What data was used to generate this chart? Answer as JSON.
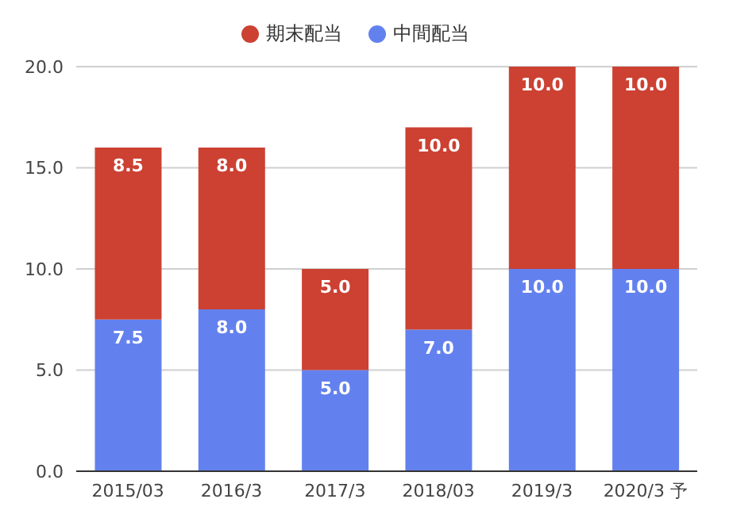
{
  "chart_data": {
    "type": "bar",
    "stacked": true,
    "categories": [
      "2015/03",
      "2016/3",
      "2017/3",
      "2018/03",
      "2019/3",
      "2020/3 予"
    ],
    "series": [
      {
        "name": "中間配当",
        "color": "#6381ee",
        "values": [
          7.5,
          8.0,
          5.0,
          7.0,
          10.0,
          10.0
        ],
        "value_labels": [
          "7.5",
          "8.0",
          "5.0",
          "7.0",
          "10.0",
          "10.0"
        ]
      },
      {
        "name": "期末配当",
        "color": "#cc4132",
        "values": [
          8.5,
          8.0,
          5.0,
          10.0,
          10.0,
          10.0
        ],
        "value_labels": [
          "8.5",
          "8.0",
          "5.0",
          "10.0",
          "10.0",
          "10.0"
        ]
      }
    ],
    "ylim": [
      0,
      20
    ],
    "yticks": [
      {
        "value": 0,
        "label": "0.0"
      },
      {
        "value": 5,
        "label": "5.0"
      },
      {
        "value": 10,
        "label": "10.0"
      },
      {
        "value": 15,
        "label": "15.0"
      },
      {
        "value": 20,
        "label": "20.0"
      }
    ],
    "grid": "y",
    "legend": "top"
  }
}
